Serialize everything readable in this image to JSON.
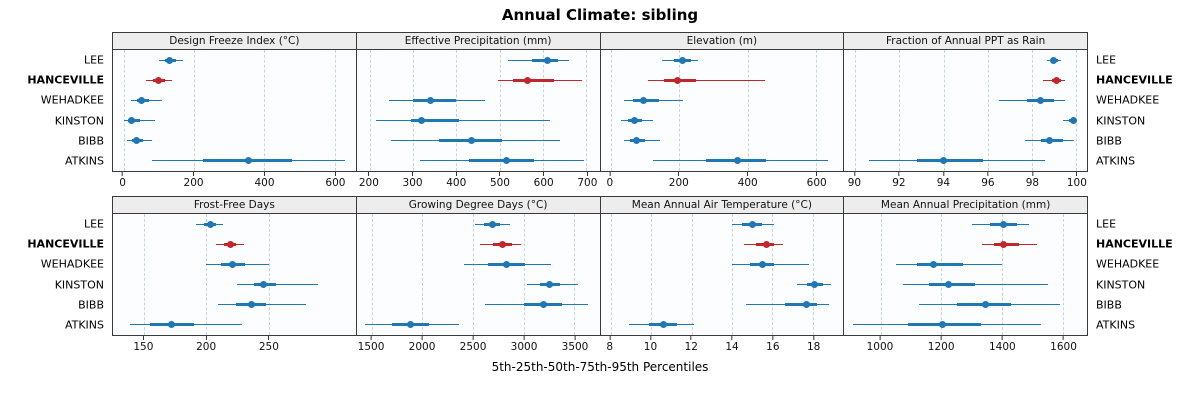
{
  "colors": {
    "point_blue": "#1f77b4",
    "point_red": "#c0272d",
    "gridline": "#c6d4e2",
    "panel_border": "#3a3a3a",
    "strip_bg": "#ededed",
    "plot_bg": "#fcfdff"
  },
  "chart_data": {
    "type": "dotplot",
    "title": "Annual Climate: sibling",
    "xlabel": "5th-25th-50th-75th-95th Percentiles",
    "percentiles": [
      5,
      25,
      50,
      75,
      95
    ],
    "layout": {
      "rows": 2,
      "cols": 4,
      "grid": "dashed-vertical",
      "legend": "none",
      "y_labels": "both-sides"
    },
    "categories": [
      "LEE",
      "HANCEVILLE",
      "WEHADKEE",
      "KINSTON",
      "BIBB",
      "ATKINS"
    ],
    "highlight_category": "HANCEVILLE",
    "panels": [
      {
        "title": "Design Freeze Index (°C)",
        "xlim": [
          -30,
          660
        ],
        "ticks": [
          0,
          200,
          400,
          600
        ],
        "values": {
          "LEE": [
            100,
            118,
            132,
            150,
            168
          ],
          "HANCEVILLE": [
            65,
            85,
            100,
            118,
            138
          ],
          "WEHADKEE": [
            20,
            38,
            52,
            72,
            108
          ],
          "KINSTON": [
            2,
            12,
            24,
            46,
            88
          ],
          "BIBB": [
            10,
            24,
            38,
            56,
            82
          ],
          "ATKINS": [
            80,
            225,
            355,
            480,
            630
          ]
        }
      },
      {
        "title": "Effective Precipitation (mm)",
        "xlim": [
          170,
          730
        ],
        "ticks": [
          200,
          300,
          400,
          500,
          600,
          700
        ],
        "values": {
          "LEE": [
            520,
            575,
            610,
            635,
            660
          ],
          "HANCEVILLE": [
            495,
            530,
            565,
            625,
            690
          ],
          "WEHADKEE": [
            245,
            300,
            340,
            400,
            465
          ],
          "KINSTON": [
            215,
            295,
            320,
            405,
            615
          ],
          "BIBB": [
            250,
            360,
            435,
            505,
            640
          ],
          "ATKINS": [
            315,
            430,
            515,
            580,
            695
          ]
        }
      },
      {
        "title": "Elevation (m)",
        "xlim": [
          -30,
          680
        ],
        "ticks": [
          0,
          200,
          400,
          600
        ],
        "values": {
          "LEE": [
            150,
            185,
            210,
            235,
            255
          ],
          "HANCEVILLE": [
            110,
            155,
            195,
            250,
            450
          ],
          "WEHADKEE": [
            40,
            65,
            95,
            140,
            210
          ],
          "KINSTON": [
            30,
            50,
            70,
            90,
            125
          ],
          "BIBB": [
            40,
            55,
            75,
            100,
            145
          ],
          "ATKINS": [
            125,
            280,
            370,
            455,
            635
          ]
        }
      },
      {
        "title": "Fraction of Annual PPT as Rain",
        "xlim": [
          89.5,
          100.5
        ],
        "ticks": [
          90,
          92,
          94,
          96,
          98,
          100
        ],
        "values": {
          "LEE": [
            98.7,
            98.9,
            99.0,
            99.2,
            99.3
          ],
          "HANCEVILLE": [
            98.5,
            98.9,
            99.1,
            99.3,
            99.5
          ],
          "WEHADKEE": [
            96.5,
            97.8,
            98.4,
            99.0,
            99.5
          ],
          "KINSTON": [
            99.4,
            99.7,
            99.9,
            100.0,
            100.0
          ],
          "BIBB": [
            97.7,
            98.4,
            98.8,
            99.4,
            99.9
          ],
          "ATKINS": [
            90.6,
            92.8,
            94.0,
            95.8,
            98.6
          ]
        }
      },
      {
        "title": "Frost-Free Days",
        "xlim": [
          125,
          320
        ],
        "ticks": [
          150,
          200,
          250
        ],
        "values": {
          "LEE": [
            192,
            198,
            203,
            208,
            213
          ],
          "HANCEVILLE": [
            208,
            214,
            219,
            224,
            230
          ],
          "WEHADKEE": [
            200,
            212,
            221,
            231,
            250
          ],
          "KINSTON": [
            225,
            238,
            246,
            256,
            290
          ],
          "BIBB": [
            209,
            224,
            236,
            248,
            280
          ],
          "ATKINS": [
            139,
            155,
            172,
            190,
            229
          ]
        }
      },
      {
        "title": "Growing Degree Days (°C)",
        "xlim": [
          1350,
          3750
        ],
        "ticks": [
          1500,
          2000,
          2500,
          3000,
          3500
        ],
        "values": {
          "LEE": [
            2520,
            2610,
            2690,
            2770,
            2870
          ],
          "HANCEVILLE": [
            2570,
            2700,
            2790,
            2880,
            2975
          ],
          "WEHADKEE": [
            2410,
            2650,
            2830,
            3010,
            3270
          ],
          "KINSTON": [
            3030,
            3160,
            3260,
            3360,
            3540
          ],
          "BIBB": [
            2620,
            3000,
            3200,
            3380,
            3640
          ],
          "ATKINS": [
            1430,
            1700,
            1880,
            2060,
            2360
          ]
        }
      },
      {
        "title": "Mean Annual Air Temperature (°C)",
        "xlim": [
          7.5,
          19.5
        ],
        "ticks": [
          8,
          10,
          12,
          14,
          16,
          18
        ],
        "values": {
          "LEE": [
            14.0,
            14.5,
            15.0,
            15.5,
            16.1
          ],
          "HANCEVILLE": [
            14.6,
            15.2,
            15.7,
            16.1,
            16.5
          ],
          "WEHADKEE": [
            14.0,
            14.9,
            15.5,
            16.1,
            17.8
          ],
          "KINSTON": [
            17.2,
            17.7,
            18.1,
            18.5,
            18.9
          ],
          "BIBB": [
            14.7,
            16.6,
            17.7,
            18.2,
            18.8
          ],
          "ATKINS": [
            8.9,
            9.9,
            10.6,
            11.3,
            12.1
          ]
        }
      },
      {
        "title": "Mean Annual Precipitation (mm)",
        "xlim": [
          880,
          1680
        ],
        "ticks": [
          1000,
          1200,
          1400,
          1600
        ],
        "values": {
          "LEE": [
            1300,
            1360,
            1405,
            1450,
            1490
          ],
          "HANCEVILLE": [
            1335,
            1375,
            1405,
            1455,
            1515
          ],
          "WEHADKEE": [
            1050,
            1120,
            1175,
            1270,
            1400
          ],
          "KINSTON": [
            1075,
            1160,
            1225,
            1310,
            1550
          ],
          "BIBB": [
            1125,
            1250,
            1345,
            1430,
            1590
          ],
          "ATKINS": [
            910,
            1090,
            1205,
            1330,
            1530
          ]
        }
      }
    ]
  }
}
